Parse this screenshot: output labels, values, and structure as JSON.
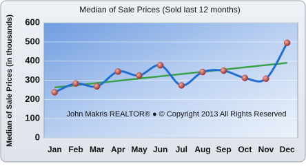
{
  "chart_data": {
    "type": "line",
    "title": "Median of Sale Prices (Sold last 12 months)",
    "y_label": "Median of Sale Prices (in thousands)",
    "annotation": "John Makris REALTOR® ● © Copyright 2013 All Rights Reserved",
    "categories": [
      "Jan",
      "Feb",
      "Mar",
      "Apr",
      "May",
      "Jun",
      "Jul",
      "Aug",
      "Sep",
      "Oct",
      "Nov",
      "Dec"
    ],
    "values": [
      237,
      283,
      268,
      345,
      325,
      378,
      273,
      343,
      350,
      312,
      308,
      495
    ],
    "color": "#1f6fd1",
    "marker_color": "#b8413c",
    "trendline": true,
    "trend_color": "#3aa04a",
    "ylim": [
      0,
      600
    ],
    "yticks": [
      0,
      100,
      200,
      300,
      400,
      500,
      600
    ],
    "grid": true
  }
}
